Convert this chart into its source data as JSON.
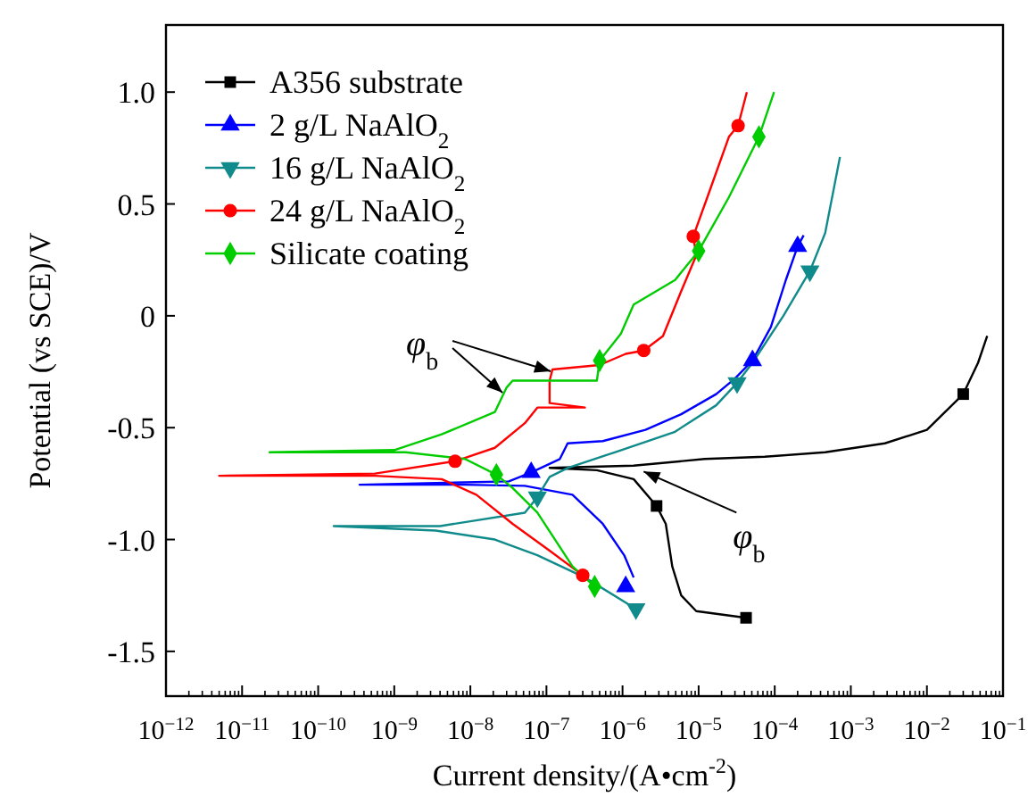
{
  "chart_data": {
    "type": "line",
    "xlabel": "Current density/(A•cm$^{-2}$)",
    "ylabel": "Potential (vs SCE)/V",
    "log": "x",
    "legend": "top left",
    "grid": false,
    "xlim": [
      1e-12,
      0.1
    ],
    "ylim": [
      -1.7,
      1.3
    ],
    "xticks": [
      {
        "value": 1e-12,
        "label": "10$^{−12}$"
      },
      {
        "value": 1e-11,
        "label": "10$^{−11}$"
      },
      {
        "value": 1e-10,
        "label": "10$^{−10}$"
      },
      {
        "value": 1e-09,
        "label": "10$^{−9}$"
      },
      {
        "value": 1e-08,
        "label": "10$^{−8}$"
      },
      {
        "value": 1e-07,
        "label": "10$^{−7}$"
      },
      {
        "value": 1e-06,
        "label": "10$^{−6}$"
      },
      {
        "value": 1e-05,
        "label": "10$^{−5}$"
      },
      {
        "value": 0.0001,
        "label": "10$^{−4}$"
      },
      {
        "value": 0.001,
        "label": "10$^{−3}$"
      },
      {
        "value": 0.01,
        "label": "10$^{−2}$"
      },
      {
        "value": 0.1,
        "label": "10$^{−1}$"
      }
    ],
    "yticks": [
      {
        "value": -1.5,
        "label": "-1.5"
      },
      {
        "value": -1,
        "label": "-1.0"
      },
      {
        "value": -0.5,
        "label": "-0.5"
      },
      0,
      {
        "value": 0.5,
        "label": "0.5"
      },
      {
        "value": 1,
        "label": "1.0"
      }
    ],
    "annotations": [
      {
        "text": "φ$_{b}$",
        "x": 1.2e-07,
        "y": -0.24
      },
      {
        "text": "φ$_{b}$",
        "x": 1.7e-06,
        "y": -0.68
      }
    ],
    "series": [
      {
        "name": "A356 substrate",
        "marker": "none",
        "color": "#000000",
        "x": [
          4.2e-05,
          9.3e-06,
          5.9e-06,
          4.5e-06,
          3.7e-06,
          2.8e-06,
          1.4e-06,
          4.6e-07,
          1.1e-07,
          1.4e-06,
          1.2e-05,
          7.4e-05,
          0.00046,
          0.0028,
          0.01,
          0.03,
          0.047,
          0.062
        ],
        "values": [
          -1.35,
          -1.32,
          -1.25,
          -1.12,
          -0.93,
          -0.85,
          -0.73,
          -0.69,
          -0.68,
          -0.67,
          -0.64,
          -0.63,
          -0.61,
          -0.57,
          -0.51,
          -0.35,
          -0.21,
          -0.09
        ]
      },
      {
        "name": "2 g/L NaAlO$_{2}$",
        "marker": "none",
        "color": "#0000ff",
        "x": [
          1.4e-06,
          1.05e-06,
          5.5e-07,
          2.2e-07,
          5.2e-08,
          8.5e-09,
          3.5e-10,
          3.2e-08,
          6.3e-08,
          1.5e-07,
          1.9e-07,
          5.5e-07,
          2e-06,
          5.9e-06,
          1.7e-05,
          3e-05,
          5.1e-05,
          8.9e-05,
          0.00014,
          0.0002,
          0.00024
        ],
        "values": [
          -1.17,
          -1.07,
          -0.93,
          -0.8,
          -0.76,
          -0.755,
          -0.755,
          -0.74,
          -0.7,
          -0.64,
          -0.57,
          -0.56,
          -0.51,
          -0.44,
          -0.35,
          -0.28,
          -0.2,
          -0.05,
          0.16,
          0.31,
          0.36
        ]
      },
      {
        "name": "16 g/L NaAlO$_{2}$",
        "marker": "none",
        "color": "#108a8a",
        "x": [
          1.5e-06,
          3.2e-07,
          7.6e-08,
          2.1e-08,
          3.5e-09,
          1.6e-10,
          4e-09,
          5.2e-08,
          7.6e-08,
          1.1e-07,
          1.9e-07,
          7.9e-07,
          4.8e-06,
          1.7e-05,
          3.2e-05,
          5.1e-05,
          0.00013,
          0.00029,
          0.00046,
          0.00072
        ],
        "values": [
          -1.31,
          -1.17,
          -1.07,
          -1.0,
          -0.96,
          -0.94,
          -0.94,
          -0.88,
          -0.81,
          -0.72,
          -0.68,
          -0.61,
          -0.52,
          -0.4,
          -0.3,
          -0.21,
          0,
          0.2,
          0.37,
          0.71
        ]
      },
      {
        "name": "24 g/L NaAlO$_{2}$",
        "marker": "none",
        "color": "#ff0000",
        "x": [
          3e-07,
          1.1e-07,
          3.6e-08,
          1.2e-08,
          4.2e-09,
          5.6e-10,
          5e-12,
          5.6e-10,
          6.3e-09,
          2.1e-08,
          5.2e-08,
          7.6e-08,
          3.2e-07,
          1.1e-07,
          1.1e-07,
          1.2e-07,
          5e-07,
          1.1e-06,
          1.9e-06,
          3.4e-06,
          5.9e-06,
          9.3e-06,
          8.5e-06,
          1.4e-05,
          2.5e-05,
          3.3e-05,
          4.3e-05
        ],
        "values": [
          -1.16,
          -1.05,
          -0.93,
          -0.8,
          -0.73,
          -0.715,
          -0.715,
          -0.705,
          -0.65,
          -0.59,
          -0.48,
          -0.41,
          -0.41,
          -0.39,
          -0.29,
          -0.24,
          -0.22,
          -0.17,
          -0.155,
          -0.09,
          0.11,
          0.27,
          0.355,
          0.56,
          0.8,
          0.85,
          1.0
        ]
      },
      {
        "name": "Silicate coating",
        "marker": "none",
        "color": "#00cc00",
        "x": [
          4.3e-07,
          2.2e-07,
          7.6e-08,
          3.6e-08,
          2.2e-08,
          8.5e-09,
          1.4e-09,
          2.3e-11,
          1e-09,
          4.2e-09,
          2.1e-08,
          3e-08,
          3.6e-08,
          4.6e-07,
          5e-07,
          9.5e-07,
          1.4e-06,
          4.9e-06,
          1e-05,
          2.5e-05,
          6.2e-05,
          9.8e-05
        ],
        "values": [
          -1.21,
          -1.12,
          -0.88,
          -0.77,
          -0.71,
          -0.64,
          -0.61,
          -0.61,
          -0.6,
          -0.53,
          -0.43,
          -0.32,
          -0.29,
          -0.29,
          -0.2,
          -0.08,
          0.05,
          0.16,
          0.29,
          0.53,
          0.8,
          1.0
        ]
      },
      {
        "type": "scatter",
        "marker": "square",
        "color": "#000000",
        "x": [
          2.8e-06,
          4.2e-05,
          0.03
        ],
        "values": [
          -0.85,
          -1.35,
          -0.35
        ]
      },
      {
        "type": "scatter",
        "marker": "triangle",
        "color": "#0000ff",
        "x": [
          6.3e-08,
          5.1e-05,
          0.0002,
          1.1e-06
        ],
        "values": [
          -0.7,
          -0.2,
          0.31,
          -1.21
        ]
      },
      {
        "type": "scatter",
        "marker": "triangle-down",
        "color": "#108a8a",
        "x": [
          1.5e-06,
          7.6e-08,
          3.2e-05,
          0.00029
        ],
        "values": [
          -1.31,
          -0.81,
          -0.3,
          0.2
        ]
      },
      {
        "type": "scatter",
        "marker": "circle",
        "color": "#ff0000",
        "x": [
          6.3e-09,
          3e-07,
          1.9e-06,
          8.5e-06,
          3.3e-05
        ],
        "values": [
          -0.65,
          -1.16,
          -0.155,
          0.355,
          0.85
        ]
      },
      {
        "type": "scatter",
        "marker": "diamond",
        "color": "#00cc00",
        "x": [
          2.2e-08,
          4.3e-07,
          5e-07,
          1e-05,
          6.2e-05
        ],
        "values": [
          -0.71,
          -1.21,
          -0.2,
          0.29,
          0.8
        ]
      }
    ]
  }
}
